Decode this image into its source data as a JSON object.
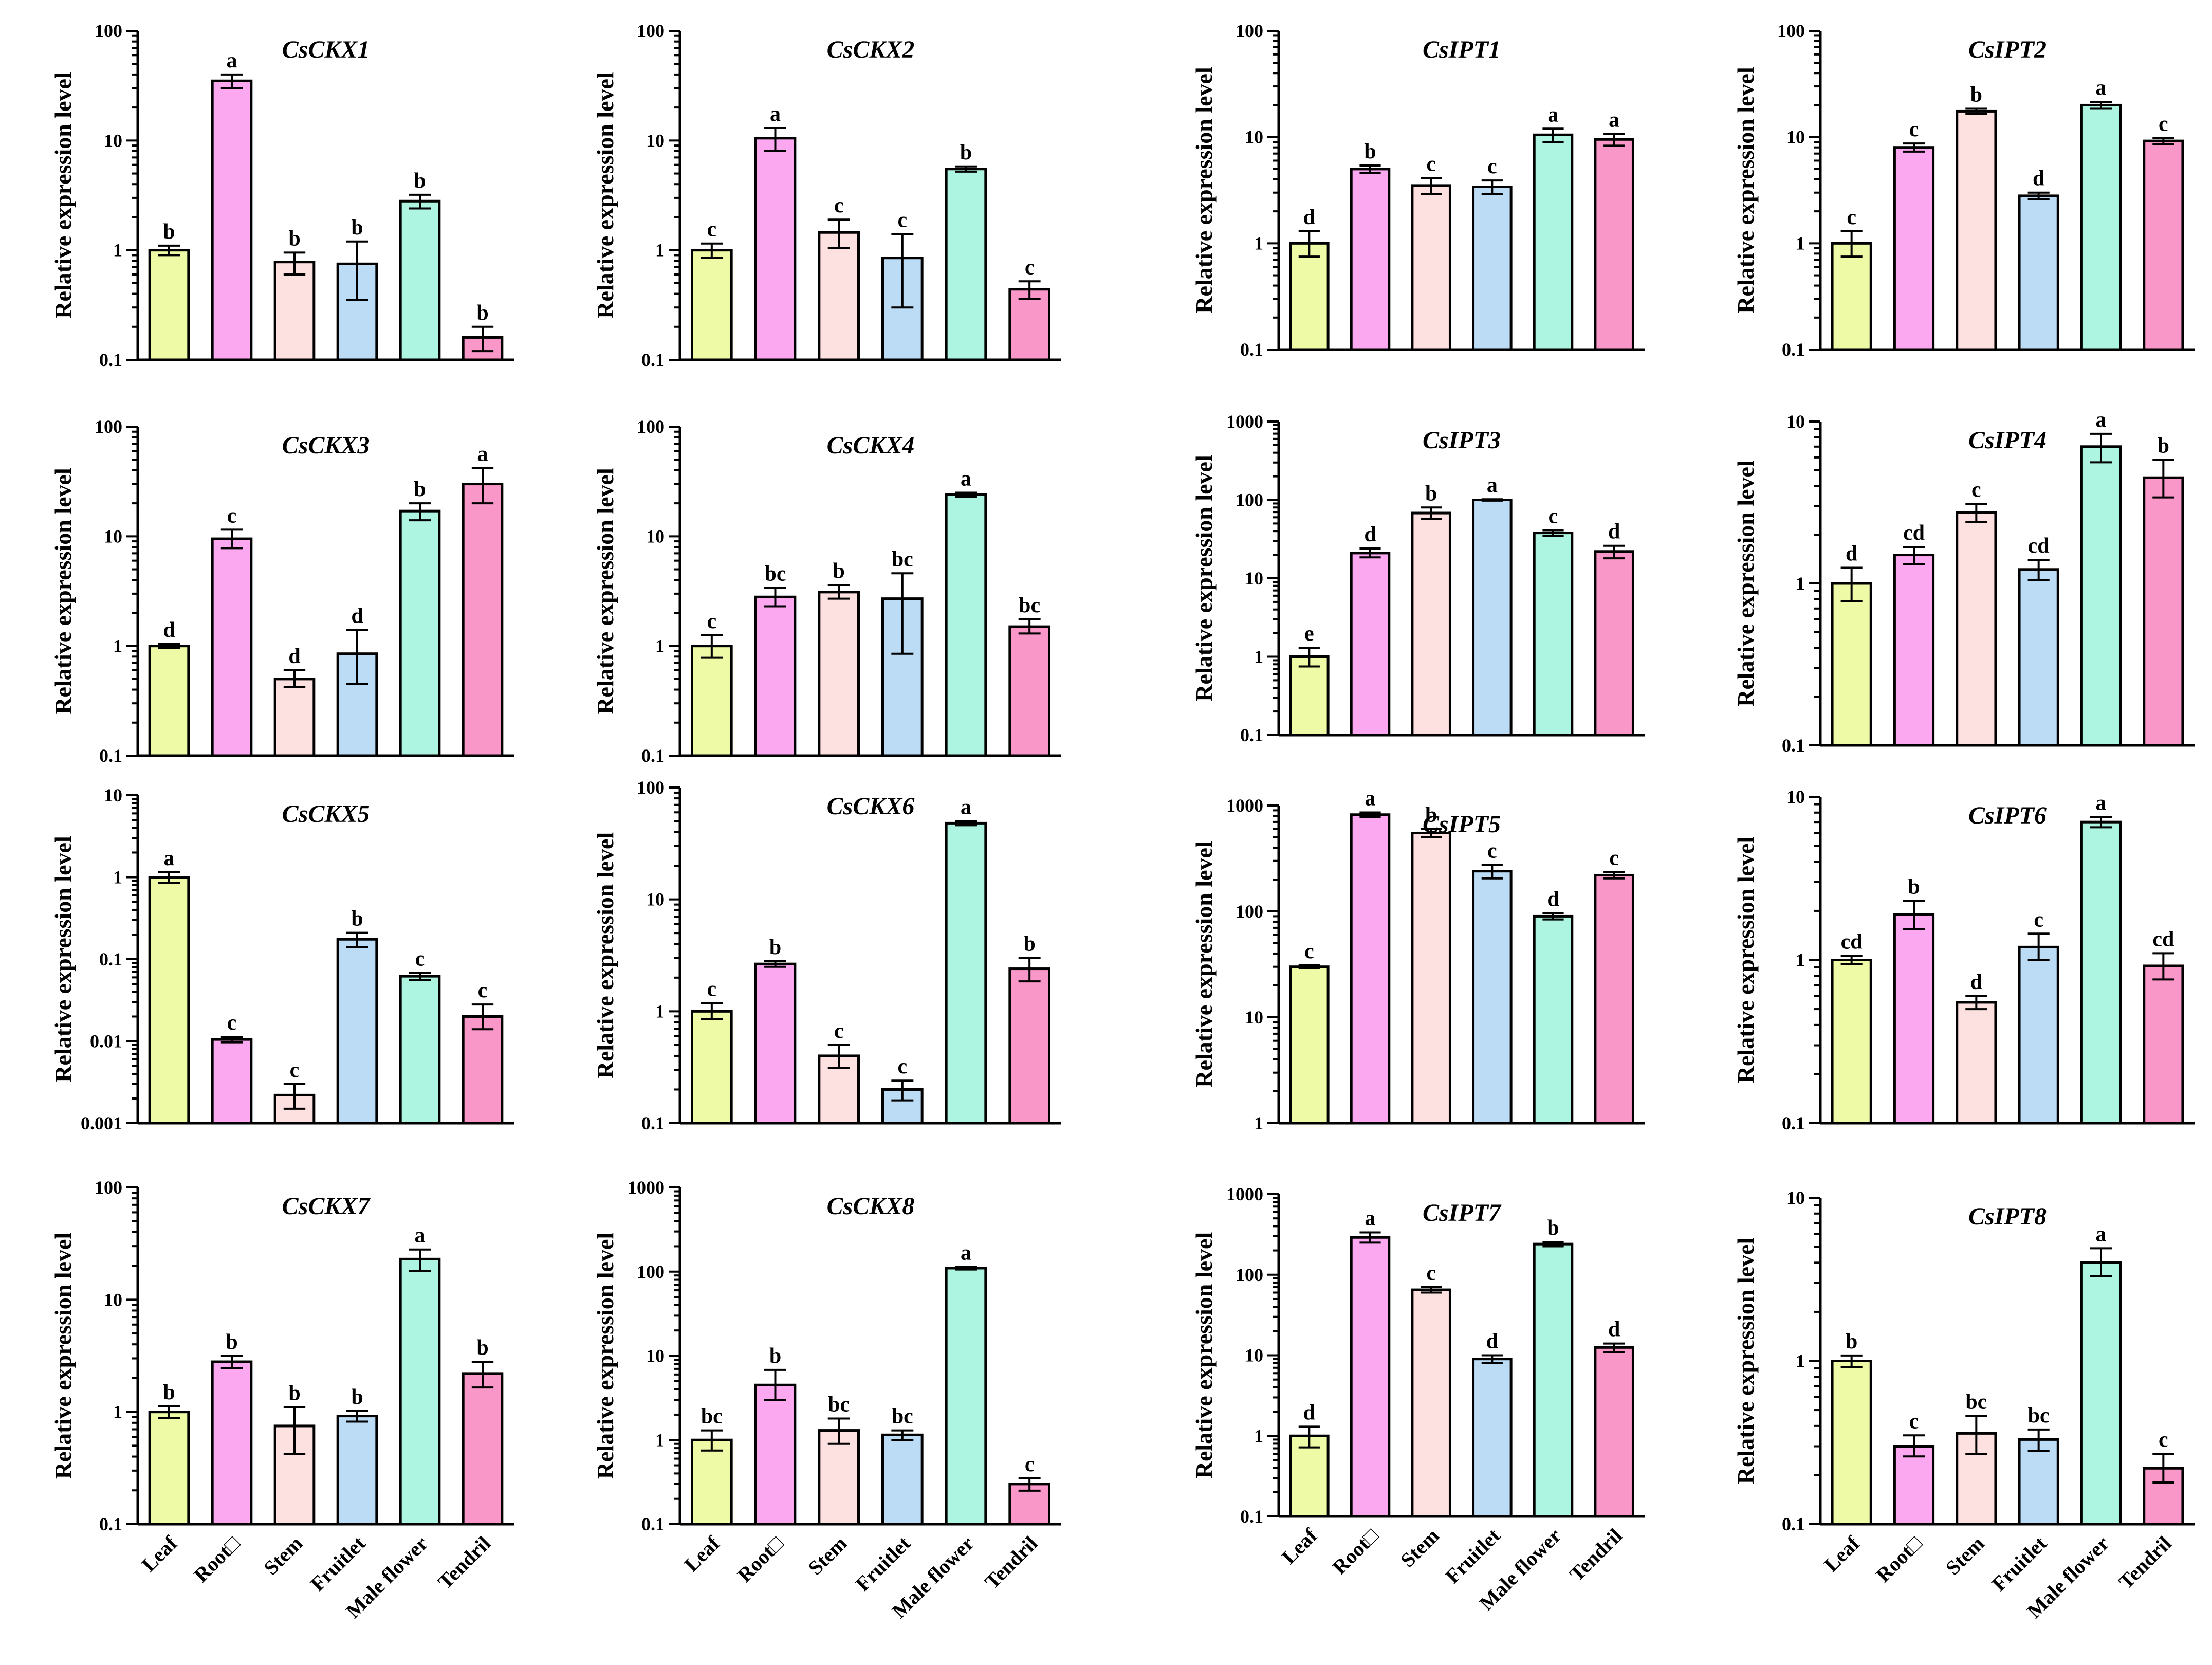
{
  "figure": {
    "ylabel": "Relative expression level",
    "tissues": [
      "Leaf",
      "Root□",
      "Stem",
      "Fruitlet",
      "Male flower",
      "Tendril"
    ],
    "colors": [
      "#eefaa6",
      "#fba8f0",
      "#fde0e0",
      "#bcdcf6",
      "#adf5e1",
      "#fa97c9"
    ]
  },
  "chart_data": [
    {
      "type": "bar",
      "title": "CsCKX1",
      "scale": "log",
      "ylim": [
        0.1,
        100
      ],
      "ticks": [
        "0.1",
        "1",
        "10",
        "100"
      ],
      "categories": [
        "Leaf",
        "Root□",
        "Stem",
        "Fruitlet",
        "Male flower",
        "Tendril"
      ],
      "values": [
        1.0,
        35,
        0.78,
        0.75,
        2.8,
        0.16
      ],
      "errors": [
        [
          0.9,
          1.1
        ],
        [
          30,
          40
        ],
        [
          0.6,
          0.95
        ],
        [
          0.35,
          1.2
        ],
        [
          2.4,
          3.2
        ],
        [
          0.12,
          0.2
        ]
      ],
      "letters": [
        "b",
        "a",
        "b",
        "b",
        "b",
        "b"
      ]
    },
    {
      "type": "bar",
      "title": "CsCKX2",
      "scale": "log",
      "ylim": [
        0.1,
        100
      ],
      "ticks": [
        "0.1",
        "1",
        "10",
        "100"
      ],
      "categories": [
        "Leaf",
        "Root□",
        "Stem",
        "Fruitlet",
        "Male flower",
        "Tendril"
      ],
      "values": [
        1.0,
        10.5,
        1.45,
        0.85,
        5.5,
        0.44
      ],
      "errors": [
        [
          0.85,
          1.15
        ],
        [
          8,
          13
        ],
        [
          1.05,
          1.9
        ],
        [
          0.3,
          1.4
        ],
        [
          5.2,
          5.8
        ],
        [
          0.36,
          0.52
        ]
      ],
      "letters": [
        "c",
        "a",
        "c",
        "c",
        "b",
        "c"
      ]
    },
    {
      "type": "bar",
      "title": "CsIPT1",
      "scale": "log",
      "ylim": [
        0.1,
        100
      ],
      "ticks": [
        "0.1",
        "1",
        "10",
        "100"
      ],
      "categories": [
        "Leaf",
        "Root□",
        "Stem",
        "Fruitlet",
        "Male flower",
        "Tendril"
      ],
      "values": [
        1.0,
        5.0,
        3.5,
        3.4,
        10.5,
        9.5
      ],
      "errors": [
        [
          0.75,
          1.3
        ],
        [
          4.6,
          5.4
        ],
        [
          2.9,
          4.1
        ],
        [
          2.9,
          3.9
        ],
        [
          9,
          12
        ],
        [
          8.3,
          10.7
        ]
      ],
      "letters": [
        "d",
        "b",
        "c",
        "c",
        "a",
        "a"
      ]
    },
    {
      "type": "bar",
      "title": "CsIPT2",
      "scale": "log",
      "ylim": [
        0.1,
        100
      ],
      "ticks": [
        "0.1",
        "1",
        "10",
        "100"
      ],
      "categories": [
        "Leaf",
        "Root□",
        "Stem",
        "Fruitlet",
        "Male flower",
        "Tendril"
      ],
      "values": [
        1.0,
        8.0,
        17.5,
        2.8,
        20,
        9.2
      ],
      "errors": [
        [
          0.75,
          1.3
        ],
        [
          7.3,
          8.7
        ],
        [
          16.5,
          18.5
        ],
        [
          2.6,
          3.0
        ],
        [
          18.5,
          21.5
        ],
        [
          8.6,
          9.8
        ]
      ],
      "letters": [
        "c",
        "c",
        "b",
        "d",
        "a",
        "c"
      ]
    },
    {
      "type": "bar",
      "title": "CsCKX3",
      "scale": "log",
      "ylim": [
        0.1,
        100
      ],
      "ticks": [
        "0.1",
        "1",
        "10",
        "100"
      ],
      "categories": [
        "Leaf",
        "Root□",
        "Stem",
        "Fruitlet",
        "Male flower",
        "Tendril"
      ],
      "values": [
        1.0,
        9.5,
        0.5,
        0.85,
        17,
        30
      ],
      "errors": [
        [
          0.96,
          1.04
        ],
        [
          7.8,
          11.5
        ],
        [
          0.42,
          0.6
        ],
        [
          0.45,
          1.4
        ],
        [
          14,
          20
        ],
        [
          20,
          42
        ]
      ],
      "letters": [
        "d",
        "c",
        "d",
        "d",
        "b",
        "a"
      ]
    },
    {
      "type": "bar",
      "title": "CsCKX4",
      "scale": "log",
      "ylim": [
        0.1,
        100
      ],
      "ticks": [
        "0.1",
        "1",
        "10",
        "100"
      ],
      "categories": [
        "Leaf",
        "Root□",
        "Stem",
        "Fruitlet",
        "Male flower",
        "Tendril"
      ],
      "values": [
        1.0,
        2.8,
        3.1,
        2.7,
        24,
        1.5
      ],
      "errors": [
        [
          0.78,
          1.25
        ],
        [
          2.3,
          3.4
        ],
        [
          2.7,
          3.6
        ],
        [
          0.85,
          4.6
        ],
        [
          23,
          25
        ],
        [
          1.3,
          1.75
        ]
      ],
      "letters": [
        "c",
        "bc",
        "b",
        "bc",
        "a",
        "bc"
      ]
    },
    {
      "type": "bar",
      "title": "CsIPT3",
      "scale": "log",
      "ylim": [
        0.1,
        1000
      ],
      "ticks": [
        "0.1",
        "1",
        "10",
        "100",
        "1000"
      ],
      "categories": [
        "Leaf",
        "Root□",
        "Stem",
        "Fruitlet",
        "Male flower",
        "Tendril"
      ],
      "values": [
        1.0,
        21,
        68,
        100,
        38,
        22
      ],
      "errors": [
        [
          0.75,
          1.3
        ],
        [
          18.5,
          24
        ],
        [
          57,
          80
        ],
        [
          98,
          102
        ],
        [
          35,
          41
        ],
        [
          18,
          26
        ]
      ],
      "letters": [
        "e",
        "d",
        "b",
        "a",
        "c",
        "d"
      ]
    },
    {
      "type": "bar",
      "title": "CsIPT4",
      "scale": "log",
      "ylim": [
        0.1,
        10
      ],
      "ticks": [
        "0.1",
        "1",
        "10"
      ],
      "categories": [
        "Leaf",
        "Root□",
        "Stem",
        "Fruitlet",
        "Male flower",
        "Tendril"
      ],
      "values": [
        1.0,
        1.5,
        2.75,
        1.22,
        7.0,
        4.5
      ],
      "errors": [
        [
          0.78,
          1.25
        ],
        [
          1.32,
          1.68
        ],
        [
          2.4,
          3.1
        ],
        [
          1.05,
          1.4
        ],
        [
          5.6,
          8.4
        ],
        [
          3.4,
          5.8
        ]
      ],
      "letters": [
        "d",
        "cd",
        "c",
        "cd",
        "a",
        "b"
      ]
    },
    {
      "type": "bar",
      "title": "CsCKX5",
      "scale": "log",
      "ylim": [
        0.001,
        10
      ],
      "ticks": [
        "0.001",
        "0.01",
        "0.1",
        "1",
        "10"
      ],
      "categories": [
        "Leaf",
        "Root□",
        "Stem",
        "Fruitlet",
        "Male flower",
        "Tendril"
      ],
      "values": [
        1.0,
        0.0105,
        0.0022,
        0.175,
        0.062,
        0.02
      ],
      "errors": [
        [
          0.85,
          1.15
        ],
        [
          0.0097,
          0.0113
        ],
        [
          0.0015,
          0.003
        ],
        [
          0.14,
          0.21
        ],
        [
          0.056,
          0.068
        ],
        [
          0.014,
          0.028
        ]
      ],
      "letters": [
        "a",
        "c",
        "c",
        "b",
        "c",
        "c"
      ]
    },
    {
      "type": "bar",
      "title": "CsCKX6",
      "scale": "log",
      "ylim": [
        0.1,
        100
      ],
      "ticks": [
        "0.1",
        "1",
        "10",
        "100"
      ],
      "categories": [
        "Leaf",
        "Root□",
        "Stem",
        "Fruitlet",
        "Male flower",
        "Tendril"
      ],
      "values": [
        1.0,
        2.65,
        0.4,
        0.2,
        48,
        2.4
      ],
      "errors": [
        [
          0.85,
          1.18
        ],
        [
          2.5,
          2.8
        ],
        [
          0.31,
          0.5
        ],
        [
          0.16,
          0.24
        ],
        [
          46,
          50
        ],
        [
          1.85,
          3.0
        ]
      ],
      "letters": [
        "c",
        "b",
        "c",
        "c",
        "a",
        "b"
      ]
    },
    {
      "type": "bar",
      "title": "CsIPT5",
      "scale": "log",
      "ylim": [
        1,
        1000
      ],
      "ticks": [
        "1",
        "10",
        "100",
        "1000"
      ],
      "categories": [
        "Leaf",
        "Root□",
        "Stem",
        "Fruitlet",
        "Male flower",
        "Tendril"
      ],
      "values": [
        30,
        820,
        550,
        240,
        90,
        220
      ],
      "errors": [
        [
          29,
          31
        ],
        [
          780,
          860
        ],
        [
          500,
          600
        ],
        [
          205,
          275
        ],
        [
          84,
          96
        ],
        [
          205,
          235
        ]
      ],
      "letters": [
        "c",
        "a",
        "b",
        "c",
        "d",
        "c"
      ]
    },
    {
      "type": "bar",
      "title": "CsIPT6",
      "scale": "log",
      "ylim": [
        0.1,
        10
      ],
      "ticks": [
        "0.1",
        "1",
        "10"
      ],
      "categories": [
        "Leaf",
        "Root□",
        "Stem",
        "Fruitlet",
        "Male flower",
        "Tendril"
      ],
      "values": [
        1.0,
        1.9,
        0.55,
        1.2,
        7.0,
        0.92
      ],
      "errors": [
        [
          0.94,
          1.06
        ],
        [
          1.55,
          2.3
        ],
        [
          0.5,
          0.6
        ],
        [
          1.0,
          1.45
        ],
        [
          6.5,
          7.5
        ],
        [
          0.76,
          1.1
        ]
      ],
      "letters": [
        "cd",
        "b",
        "d",
        "c",
        "a",
        "cd"
      ]
    },
    {
      "type": "bar",
      "title": "CsCKX7",
      "scale": "log",
      "ylim": [
        0.1,
        100
      ],
      "ticks": [
        "0.1",
        "1",
        "10",
        "100"
      ],
      "categories": [
        "Leaf",
        "Root□",
        "Stem",
        "Fruitlet",
        "Male flower",
        "Tendril"
      ],
      "values": [
        1.0,
        2.8,
        0.75,
        0.92,
        23,
        2.2
      ],
      "errors": [
        [
          0.88,
          1.12
        ],
        [
          2.45,
          3.15
        ],
        [
          0.42,
          1.1
        ],
        [
          0.82,
          1.02
        ],
        [
          18,
          28
        ],
        [
          1.65,
          2.8
        ]
      ],
      "letters": [
        "b",
        "b",
        "b",
        "b",
        "a",
        "b"
      ]
    },
    {
      "type": "bar",
      "title": "CsCKX8",
      "scale": "log",
      "ylim": [
        0.1,
        1000
      ],
      "ticks": [
        "0.1",
        "1",
        "10",
        "100",
        "1000"
      ],
      "categories": [
        "Leaf",
        "Root□",
        "Stem",
        "Fruitlet",
        "Male flower",
        "Tendril"
      ],
      "values": [
        1.0,
        4.5,
        1.3,
        1.15,
        110,
        0.3
      ],
      "errors": [
        [
          0.75,
          1.3
        ],
        [
          3.0,
          6.8
        ],
        [
          0.9,
          1.8
        ],
        [
          1.0,
          1.3
        ],
        [
          106,
          114
        ],
        [
          0.25,
          0.35
        ]
      ],
      "letters": [
        "bc",
        "b",
        "bc",
        "bc",
        "a",
        "c"
      ]
    },
    {
      "type": "bar",
      "title": "CsIPT7",
      "scale": "log",
      "ylim": [
        0.1,
        1000
      ],
      "ticks": [
        "0.1",
        "1",
        "10",
        "100",
        "1000"
      ],
      "categories": [
        "Leaf",
        "Root□",
        "Stem",
        "Fruitlet",
        "Male flower",
        "Tendril"
      ],
      "values": [
        1.0,
        290,
        65,
        9.0,
        240,
        12.5
      ],
      "errors": [
        [
          0.72,
          1.3
        ],
        [
          250,
          335
        ],
        [
          60,
          70
        ],
        [
          8.0,
          10.0
        ],
        [
          225,
          255
        ],
        [
          11,
          14
        ]
      ],
      "letters": [
        "d",
        "a",
        "c",
        "d",
        "b",
        "d"
      ]
    },
    {
      "type": "bar",
      "title": "CsIPT8",
      "scale": "log",
      "ylim": [
        0.1,
        10
      ],
      "ticks": [
        "0.1",
        "1",
        "10"
      ],
      "categories": [
        "Leaf",
        "Root□",
        "Stem",
        "Fruitlet",
        "Male flower",
        "Tendril"
      ],
      "values": [
        1.0,
        0.3,
        0.36,
        0.33,
        4.0,
        0.22
      ],
      "errors": [
        [
          0.92,
          1.08
        ],
        [
          0.26,
          0.35
        ],
        [
          0.27,
          0.46
        ],
        [
          0.28,
          0.38
        ],
        [
          3.3,
          4.9
        ],
        [
          0.18,
          0.27
        ]
      ],
      "letters": [
        "b",
        "c",
        "bc",
        "bc",
        "a",
        "c"
      ]
    }
  ]
}
